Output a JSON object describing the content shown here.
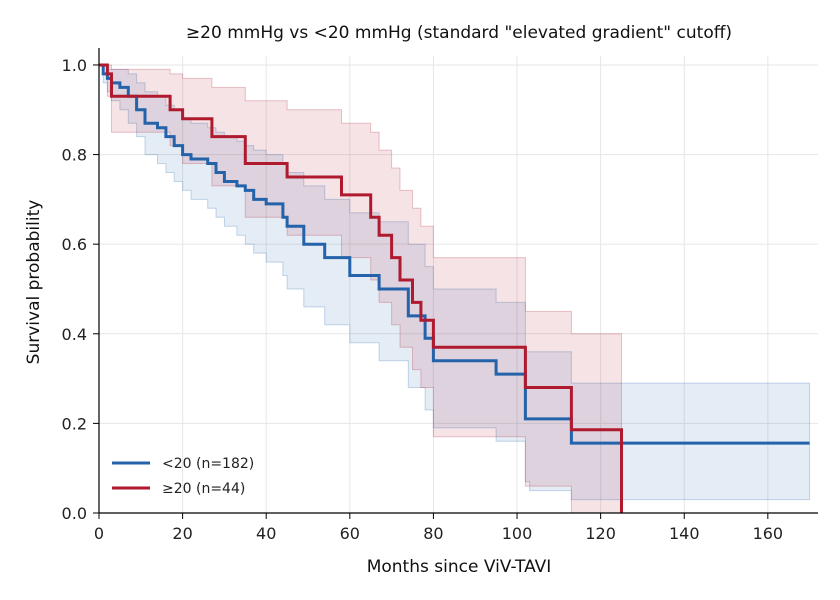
{
  "chart_data": {
    "type": "line",
    "step": true,
    "title": "≥20 mmHg vs <20 mmHg (standard \"elevated gradient\" cutoff)",
    "xlabel": "Months since ViV-TAVI",
    "ylabel": "Survival probability",
    "xlim": [
      0,
      172
    ],
    "ylim": [
      0,
      1.02
    ],
    "xticks": [
      0,
      20,
      40,
      60,
      80,
      100,
      120,
      140,
      160
    ],
    "yticks": [
      0.0,
      0.2,
      0.4,
      0.6,
      0.8,
      1.0
    ],
    "xtick_labels": [
      "0",
      "20",
      "40",
      "60",
      "80",
      "100",
      "120",
      "140",
      "160"
    ],
    "ytick_labels": [
      "0.0",
      "0.2",
      "0.4",
      "0.6",
      "0.8",
      "1.0"
    ],
    "grid": true,
    "legend_position": "lower-left",
    "series": [
      {
        "name": "<20 (n=182)",
        "color": "#2462aa",
        "x": [
          0,
          1,
          2,
          3,
          5,
          7,
          9,
          11,
          14,
          16,
          18,
          20,
          22,
          26,
          28,
          30,
          33,
          35,
          37,
          40,
          44,
          45,
          49,
          54,
          60,
          67,
          74,
          78,
          80,
          95,
          102,
          103,
          113,
          125,
          170
        ],
        "y": [
          1.0,
          0.98,
          0.97,
          0.96,
          0.95,
          0.93,
          0.9,
          0.87,
          0.86,
          0.84,
          0.82,
          0.8,
          0.79,
          0.78,
          0.76,
          0.74,
          0.73,
          0.72,
          0.7,
          0.69,
          0.66,
          0.64,
          0.6,
          0.57,
          0.53,
          0.5,
          0.44,
          0.39,
          0.34,
          0.31,
          0.21,
          0.21,
          0.156,
          0.156,
          0.156
        ],
        "ci_lower": [
          1.0,
          0.96,
          0.94,
          0.92,
          0.9,
          0.87,
          0.84,
          0.8,
          0.78,
          0.76,
          0.74,
          0.72,
          0.7,
          0.68,
          0.66,
          0.64,
          0.62,
          0.6,
          0.58,
          0.56,
          0.53,
          0.5,
          0.46,
          0.42,
          0.38,
          0.34,
          0.28,
          0.23,
          0.19,
          0.16,
          0.07,
          0.05,
          0.03,
          0.03,
          0.03
        ],
        "ci_upper": [
          1.0,
          1.0,
          0.99,
          0.99,
          0.99,
          0.98,
          0.96,
          0.94,
          0.93,
          0.91,
          0.9,
          0.88,
          0.87,
          0.86,
          0.85,
          0.84,
          0.83,
          0.82,
          0.81,
          0.8,
          0.78,
          0.76,
          0.73,
          0.7,
          0.67,
          0.65,
          0.6,
          0.55,
          0.5,
          0.47,
          0.36,
          0.36,
          0.29,
          0.29,
          0.29
        ]
      },
      {
        "name": "≥20 (n=44)",
        "color": "#b01a2e",
        "x": [
          0,
          2,
          3,
          17,
          20,
          27,
          35,
          45,
          58,
          65,
          67,
          70,
          72,
          75,
          77,
          80,
          102,
          113,
          125
        ],
        "y": [
          1.0,
          0.98,
          0.93,
          0.9,
          0.88,
          0.84,
          0.78,
          0.75,
          0.71,
          0.66,
          0.62,
          0.57,
          0.52,
          0.47,
          0.43,
          0.37,
          0.28,
          0.186,
          0.0
        ],
        "ci_lower": [
          1.0,
          0.93,
          0.85,
          0.82,
          0.78,
          0.73,
          0.66,
          0.62,
          0.57,
          0.52,
          0.47,
          0.42,
          0.37,
          0.32,
          0.28,
          0.17,
          0.06,
          0.0,
          0.0
        ],
        "ci_upper": [
          1.0,
          1.0,
          0.99,
          0.98,
          0.97,
          0.95,
          0.92,
          0.9,
          0.87,
          0.85,
          0.81,
          0.77,
          0.72,
          0.68,
          0.64,
          0.57,
          0.45,
          0.4,
          0.4
        ]
      }
    ]
  }
}
